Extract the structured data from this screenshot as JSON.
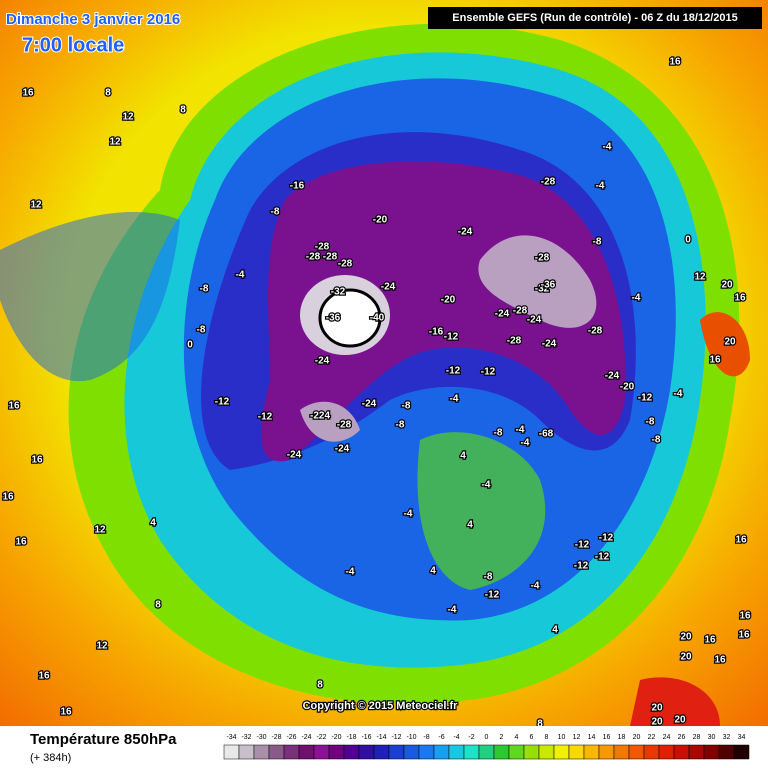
{
  "header": {
    "date": "Dimanche 3 janvier 2016",
    "time": "7:00 locale",
    "run": "Ensemble GEFS  (Run de contrôle)  -  06 Z du 18/12/2015"
  },
  "copyright": "Copyright © 2015 Meteociel.fr",
  "legend": {
    "title": "Température 850hPa",
    "lead": "(+ 384h)",
    "scale": [
      {
        "value": -34,
        "color": "#e8e8e8"
      },
      {
        "value": -32,
        "color": "#c8c0c8"
      },
      {
        "value": -30,
        "color": "#a890a8"
      },
      {
        "value": -28,
        "color": "#8a5a8a"
      },
      {
        "value": -26,
        "color": "#7a307a"
      },
      {
        "value": -24,
        "color": "#6e106e"
      },
      {
        "value": -22,
        "color": "#8c1096"
      },
      {
        "value": -20,
        "color": "#700080"
      },
      {
        "value": -18,
        "color": "#500090"
      },
      {
        "value": -16,
        "color": "#3010a0"
      },
      {
        "value": -14,
        "color": "#2020b8"
      },
      {
        "value": -12,
        "color": "#1a3ed0"
      },
      {
        "value": -10,
        "color": "#1a5ae0"
      },
      {
        "value": -8,
        "color": "#1a78f0"
      },
      {
        "value": -6,
        "color": "#18a0f0"
      },
      {
        "value": -4,
        "color": "#18c8e0"
      },
      {
        "value": -2,
        "color": "#20e0c8"
      },
      {
        "value": 0,
        "color": "#20d080"
      },
      {
        "value": 2,
        "color": "#30c830"
      },
      {
        "value": 4,
        "color": "#60d820"
      },
      {
        "value": 6,
        "color": "#98e000"
      },
      {
        "value": 8,
        "color": "#c8e800"
      },
      {
        "value": 10,
        "color": "#f0f000"
      },
      {
        "value": 12,
        "color": "#f8d800"
      },
      {
        "value": 14,
        "color": "#f8b800"
      },
      {
        "value": 16,
        "color": "#f89800"
      },
      {
        "value": 18,
        "color": "#f07800"
      },
      {
        "value": 20,
        "color": "#f05800"
      },
      {
        "value": 22,
        "color": "#e83800"
      },
      {
        "value": 24,
        "color": "#e02000"
      },
      {
        "value": 26,
        "color": "#c81000"
      },
      {
        "value": 28,
        "color": "#a80800"
      },
      {
        "value": 30,
        "color": "#800000"
      },
      {
        "value": 32,
        "color": "#500000"
      },
      {
        "value": 34,
        "color": "#200000"
      }
    ]
  },
  "map": {
    "labels": [
      "16",
      "8",
      "12",
      "8",
      "12",
      "16",
      "12",
      "-16",
      "-8",
      "-20",
      "-24",
      "-28",
      "-4",
      "-8",
      "-4",
      "0",
      "12",
      "20",
      "16",
      "-28",
      "-28",
      "-28",
      "-28",
      "-24",
      "-32",
      "-36",
      "-40",
      "-20",
      "-28",
      "-32",
      "-36",
      "-24",
      "-28",
      "-24",
      "-28",
      "-16",
      "-12",
      "-28",
      "-24",
      "-4",
      "-8",
      "-4",
      "-8",
      "0",
      "-24",
      "-12",
      "-12",
      "-24",
      "-20",
      "16",
      "20",
      "-12",
      "-12",
      "-8",
      "-4",
      "-12",
      "-8",
      "-4",
      "-224",
      "-24",
      "-28",
      "-8",
      "-8",
      "-4",
      "-4",
      "-68",
      "-24",
      "-24",
      "4",
      "-4",
      "-8",
      "16",
      "16",
      "16",
      "12",
      "-4",
      "-12",
      "-12",
      "-12",
      "-12",
      "4",
      "-4",
      "4",
      "-8",
      "-12",
      "-4",
      "-4",
      "4",
      "16",
      "16",
      "20",
      "16",
      "16",
      "20",
      "16",
      "12",
      "8",
      "16",
      "16",
      "8",
      "20",
      "20",
      "20",
      "8",
      "4",
      "16"
    ]
  }
}
